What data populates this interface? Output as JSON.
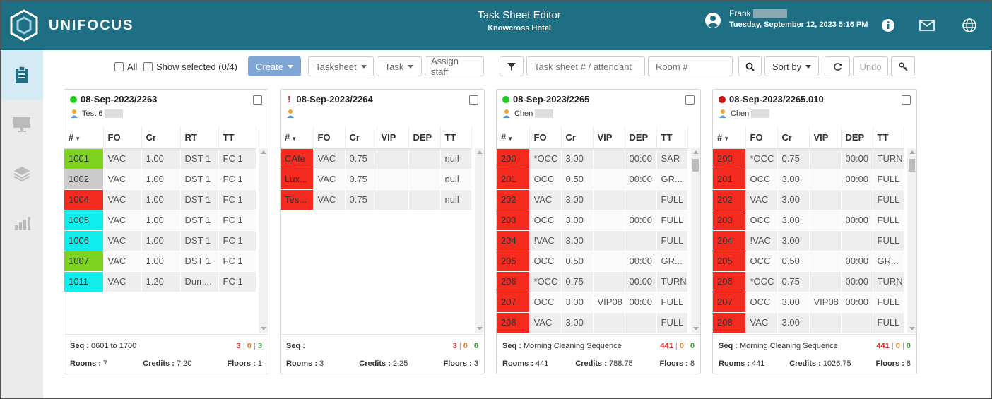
{
  "header": {
    "brand": "UNIFOCUS",
    "app_title": "Task Sheet Editor",
    "hotel": "Knowcross Hotel",
    "user_name": "Frank",
    "datetime": "Tuesday, September 12, 2023 5:16 PM"
  },
  "toolbar": {
    "all_label": "All",
    "show_selected_label": "Show selected (0/4)",
    "create_label": "Create",
    "tasksheet_label": "Tasksheet",
    "task_label": "Task",
    "assign_label": "Assign staff",
    "search_placeholder": "Task sheet # / attendant",
    "room_placeholder": "Room #",
    "sort_label": "Sort by",
    "undo_label": "Undo"
  },
  "colors": {
    "topbar": "#1f6f84",
    "green": "#7ed321",
    "gray": "#cccccc",
    "red": "#f52a1f",
    "cyan": "#11ecec"
  },
  "cards": [
    {
      "title": "08-Sep-2023/2263",
      "status": "green",
      "assignee": "Test 6",
      "columns": [
        "#",
        "FO",
        "Cr",
        "RT",
        "TT"
      ],
      "rows": [
        {
          "num": "1001",
          "color": "#7ed321",
          "cells": [
            "VAC",
            "1.00",
            "DST 1",
            "FC 1"
          ]
        },
        {
          "num": "1002",
          "color": "#cccccc",
          "cells": [
            "VAC",
            "1.00",
            "DST 1",
            "FC 1"
          ]
        },
        {
          "num": "1004",
          "color": "#f52a1f",
          "cells": [
            "VAC",
            "1.00",
            "DST 1",
            "FC 1"
          ]
        },
        {
          "num": "1005",
          "color": "#11ecec",
          "cells": [
            "VAC",
            "1.00",
            "DST 1",
            "FC 1"
          ]
        },
        {
          "num": "1006",
          "color": "#11ecec",
          "cells": [
            "VAC",
            "1.00",
            "DST 1",
            "FC 1"
          ]
        },
        {
          "num": "1007",
          "color": "#7ed321",
          "cells": [
            "VAC",
            "1.00",
            "DST 1",
            "FC 1"
          ]
        },
        {
          "num": "1011",
          "color": "#11ecec",
          "cells": [
            "VAC",
            "1.20",
            "Dum...",
            "FC 1"
          ]
        }
      ],
      "seq_label": "Seq :",
      "seq": "0601 to 1700",
      "counts": [
        "3",
        "0",
        "3"
      ],
      "rooms_label": "Rooms :",
      "rooms": "7",
      "credits_label": "Credits :",
      "credits": "7.20",
      "floors_label": "Floors :",
      "floors": "1"
    },
    {
      "title": "08-Sep-2023/2264",
      "status": "alert",
      "assignee": "",
      "columns": [
        "#",
        "FO",
        "Cr",
        "VIP",
        "DEP",
        "TT"
      ],
      "rows": [
        {
          "num": "CAfe",
          "color": "#f52a1f",
          "cells": [
            "VAC",
            "0.75",
            "",
            "",
            "null"
          ]
        },
        {
          "num": "Lux...",
          "color": "#f52a1f",
          "cells": [
            "VAC",
            "0.75",
            "",
            "",
            "null"
          ]
        },
        {
          "num": "Tes...",
          "color": "#f52a1f",
          "cells": [
            "VAC",
            "0.75",
            "",
            "",
            "null"
          ]
        }
      ],
      "seq_label": "Seq :",
      "seq": "",
      "counts": [
        "3",
        "0",
        "0"
      ],
      "rooms_label": "Rooms :",
      "rooms": "3",
      "credits_label": "Credits :",
      "credits": "2.25",
      "floors_label": "Floors :",
      "floors": "3"
    },
    {
      "title": "08-Sep-2023/2265",
      "status": "green",
      "assignee": "Chen",
      "columns": [
        "#",
        "FO",
        "Cr",
        "VIP",
        "DEP",
        "TT"
      ],
      "rows": [
        {
          "num": "200",
          "color": "#f52a1f",
          "cells": [
            "*OCC",
            "3.00",
            "",
            "00:00",
            "SAR"
          ]
        },
        {
          "num": "201",
          "color": "#f52a1f",
          "cells": [
            "OCC",
            "0.50",
            "",
            "00:00",
            "GR..."
          ]
        },
        {
          "num": "202",
          "color": "#f52a1f",
          "cells": [
            "VAC",
            "3.00",
            "",
            "",
            "FULL"
          ]
        },
        {
          "num": "203",
          "color": "#f52a1f",
          "cells": [
            "OCC",
            "3.00",
            "",
            "00:00",
            "FULL"
          ]
        },
        {
          "num": "204",
          "color": "#f52a1f",
          "cells": [
            "!VAC",
            "3.00",
            "",
            "",
            "FULL"
          ]
        },
        {
          "num": "205",
          "color": "#f52a1f",
          "cells": [
            "OCC",
            "0.50",
            "",
            "00:00",
            "GR..."
          ]
        },
        {
          "num": "206",
          "color": "#f52a1f",
          "cells": [
            "*OCC",
            "0.75",
            "",
            "00:00",
            "TURN"
          ]
        },
        {
          "num": "207",
          "color": "#f52a1f",
          "cells": [
            "OCC",
            "3.00",
            "VIP08",
            "00:00",
            "FULL"
          ]
        },
        {
          "num": "208",
          "color": "#f52a1f",
          "cells": [
            "VAC",
            "3.00",
            "",
            "",
            "FULL"
          ]
        }
      ],
      "seq_label": "Seq :",
      "seq": "Morning Cleaning Sequence",
      "counts": [
        "441",
        "0",
        "0"
      ],
      "rooms_label": "Rooms :",
      "rooms": "441",
      "credits_label": "Credits :",
      "credits": "788.75",
      "floors_label": "Floors :",
      "floors": "8"
    },
    {
      "title": "08-Sep-2023/2265.010",
      "status": "red",
      "assignee": "Chen",
      "columns": [
        "#",
        "FO",
        "Cr",
        "VIP",
        "DEP",
        "TT"
      ],
      "rows": [
        {
          "num": "200",
          "color": "#f52a1f",
          "cells": [
            "*OCC",
            "0.75",
            "",
            "00:00",
            "TURN"
          ]
        },
        {
          "num": "201",
          "color": "#f52a1f",
          "cells": [
            "OCC",
            "3.00",
            "",
            "00:00",
            "FULL"
          ]
        },
        {
          "num": "202",
          "color": "#f52a1f",
          "cells": [
            "VAC",
            "3.00",
            "",
            "",
            "FULL"
          ]
        },
        {
          "num": "203",
          "color": "#f52a1f",
          "cells": [
            "OCC",
            "3.00",
            "",
            "00:00",
            "FULL"
          ]
        },
        {
          "num": "204",
          "color": "#f52a1f",
          "cells": [
            "!VAC",
            "3.00",
            "",
            "",
            "FULL"
          ]
        },
        {
          "num": "205",
          "color": "#f52a1f",
          "cells": [
            "OCC",
            "0.50",
            "",
            "00:00",
            "GR..."
          ]
        },
        {
          "num": "206",
          "color": "#f52a1f",
          "cells": [
            "*OCC",
            "0.75",
            "",
            "00:00",
            "TURN"
          ]
        },
        {
          "num": "207",
          "color": "#f52a1f",
          "cells": [
            "OCC",
            "3.00",
            "VIP08",
            "00:00",
            "FULL"
          ]
        },
        {
          "num": "208",
          "color": "#f52a1f",
          "cells": [
            "VAC",
            "3.00",
            "",
            "",
            "FULL"
          ]
        }
      ],
      "seq_label": "Seq :",
      "seq": "Morning Cleaning Sequence",
      "counts": [
        "441",
        "0",
        "0"
      ],
      "rooms_label": "Rooms :",
      "rooms": "441",
      "credits_label": "Credits :",
      "credits": "1026.75",
      "floors_label": "Floors :",
      "floors": "8"
    }
  ]
}
